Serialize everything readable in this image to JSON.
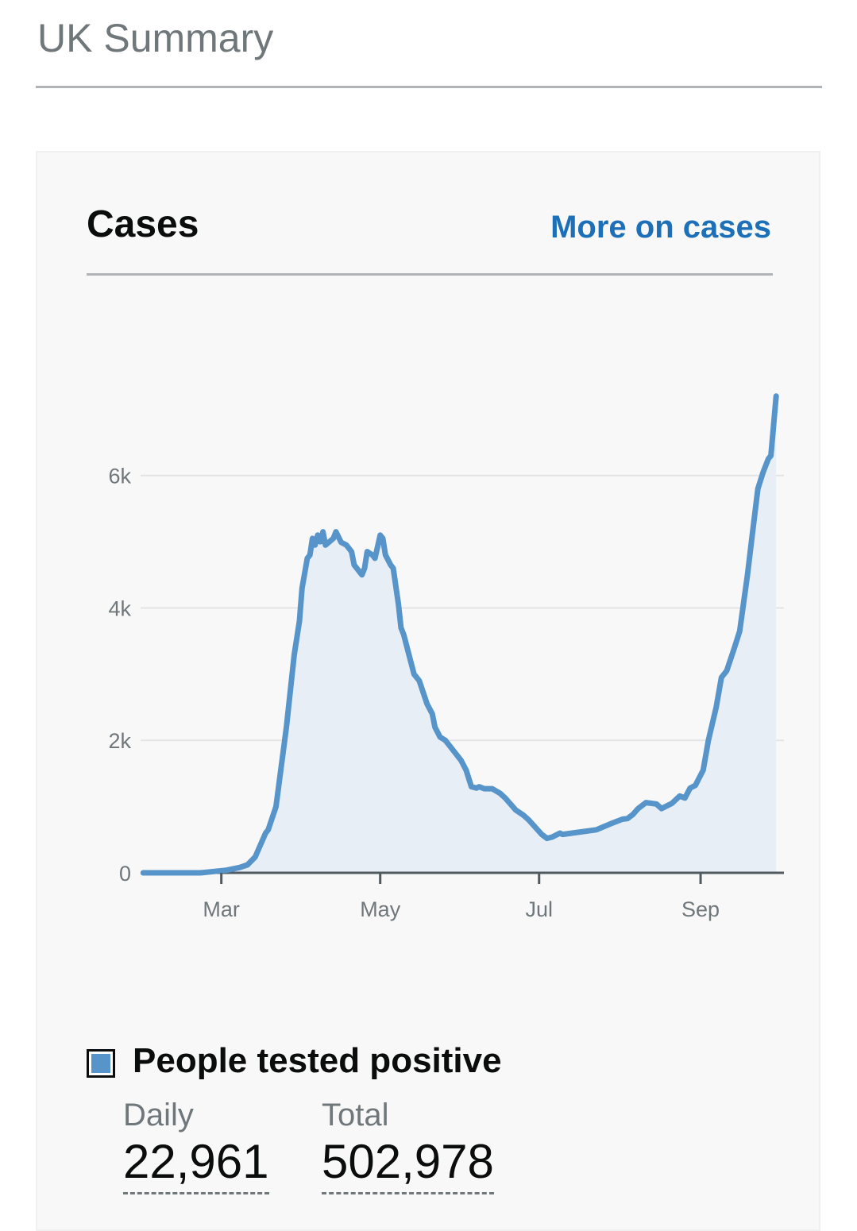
{
  "page": {
    "title": "UK Summary"
  },
  "card": {
    "title": "Cases",
    "link_label": "More on cases",
    "legend_label": "People tested positive",
    "daily_label": "Daily",
    "daily_value": "22,961",
    "total_label": "Total",
    "total_value": "502,978"
  },
  "colors": {
    "line": "#5694ca",
    "area": "#e8eef6",
    "link": "#1d70b8",
    "card_bg": "#f8f8f8"
  },
  "chart_data": {
    "type": "area",
    "title": "",
    "xlabel": "",
    "ylabel": "",
    "grid": true,
    "legend": "bottom",
    "x_ticks": [
      {
        "date": "2020-03-01",
        "label": "Mar"
      },
      {
        "date": "2020-05-01",
        "label": "May"
      },
      {
        "date": "2020-07-01",
        "label": "Jul"
      },
      {
        "date": "2020-09-01",
        "label": "Sep"
      }
    ],
    "y_ticks": [
      {
        "value": 0,
        "label": "0"
      },
      {
        "value": 2000,
        "label": "2k"
      },
      {
        "value": 4000,
        "label": "4k"
      },
      {
        "value": 6000,
        "label": "6k"
      }
    ],
    "xlim": [
      "2020-01-30",
      "2020-10-03"
    ],
    "ylim": [
      0,
      7400
    ],
    "series": [
      {
        "name": "People tested positive",
        "points": [
          [
            "2020-01-31",
            0
          ],
          [
            "2020-02-15",
            0
          ],
          [
            "2020-02-22",
            0
          ],
          [
            "2020-03-03",
            40
          ],
          [
            "2020-03-08",
            80
          ],
          [
            "2020-03-11",
            120
          ],
          [
            "2020-03-14",
            240
          ],
          [
            "2020-03-18",
            600
          ],
          [
            "2020-03-19",
            650
          ],
          [
            "2020-03-22",
            1000
          ],
          [
            "2020-03-26",
            2200
          ],
          [
            "2020-03-29",
            3300
          ],
          [
            "2020-03-31",
            3800
          ],
          [
            "2020-04-01",
            4300
          ],
          [
            "2020-04-03",
            4750
          ],
          [
            "2020-04-04",
            4800
          ],
          [
            "2020-04-05",
            5050
          ],
          [
            "2020-04-06",
            4950
          ],
          [
            "2020-04-07",
            5100
          ],
          [
            "2020-04-08",
            5000
          ],
          [
            "2020-04-09",
            5150
          ],
          [
            "2020-04-10",
            4950
          ],
          [
            "2020-04-13",
            5050
          ],
          [
            "2020-04-14",
            5150
          ],
          [
            "2020-04-16",
            4990
          ],
          [
            "2020-04-18",
            4950
          ],
          [
            "2020-04-20",
            4850
          ],
          [
            "2020-04-21",
            4650
          ],
          [
            "2020-04-24",
            4500
          ],
          [
            "2020-04-25",
            4600
          ],
          [
            "2020-04-26",
            4850
          ],
          [
            "2020-04-28",
            4800
          ],
          [
            "2020-04-29",
            4750
          ],
          [
            "2020-05-01",
            5100
          ],
          [
            "2020-05-02",
            5050
          ],
          [
            "2020-05-03",
            4800
          ],
          [
            "2020-05-05",
            4650
          ],
          [
            "2020-05-06",
            4600
          ],
          [
            "2020-05-08",
            4050
          ],
          [
            "2020-05-09",
            3700
          ],
          [
            "2020-05-10",
            3600
          ],
          [
            "2020-05-14",
            3000
          ],
          [
            "2020-05-16",
            2900
          ],
          [
            "2020-05-19",
            2550
          ],
          [
            "2020-05-21",
            2400
          ],
          [
            "2020-05-22",
            2200
          ],
          [
            "2020-05-24",
            2050
          ],
          [
            "2020-05-26",
            2000
          ],
          [
            "2020-05-27",
            1950
          ],
          [
            "2020-05-30",
            1800
          ],
          [
            "2020-06-01",
            1700
          ],
          [
            "2020-06-03",
            1550
          ],
          [
            "2020-06-05",
            1300
          ],
          [
            "2020-06-07",
            1280
          ],
          [
            "2020-06-08",
            1300
          ],
          [
            "2020-06-10",
            1270
          ],
          [
            "2020-06-13",
            1270
          ],
          [
            "2020-06-16",
            1200
          ],
          [
            "2020-06-18",
            1130
          ],
          [
            "2020-06-22",
            950
          ],
          [
            "2020-06-25",
            870
          ],
          [
            "2020-06-27",
            800
          ],
          [
            "2020-07-02",
            580
          ],
          [
            "2020-07-04",
            520
          ],
          [
            "2020-07-06",
            540
          ],
          [
            "2020-07-09",
            600
          ],
          [
            "2020-07-10",
            580
          ],
          [
            "2020-07-23",
            650
          ],
          [
            "2020-07-29",
            750
          ],
          [
            "2020-08-02",
            810
          ],
          [
            "2020-08-04",
            820
          ],
          [
            "2020-08-06",
            880
          ],
          [
            "2020-08-08",
            970
          ],
          [
            "2020-08-11",
            1060
          ],
          [
            "2020-08-15",
            1040
          ],
          [
            "2020-08-17",
            970
          ],
          [
            "2020-08-21",
            1050
          ],
          [
            "2020-08-24",
            1160
          ],
          [
            "2020-08-26",
            1130
          ],
          [
            "2020-08-28",
            1280
          ],
          [
            "2020-08-30",
            1320
          ],
          [
            "2020-09-02",
            1550
          ],
          [
            "2020-09-04",
            2000
          ],
          [
            "2020-09-07",
            2500
          ],
          [
            "2020-09-09",
            2950
          ],
          [
            "2020-09-11",
            3050
          ],
          [
            "2020-09-14",
            3400
          ],
          [
            "2020-09-16",
            3650
          ],
          [
            "2020-09-19",
            4500
          ],
          [
            "2020-09-21",
            5150
          ],
          [
            "2020-09-23",
            5800
          ],
          [
            "2020-09-25",
            6050
          ],
          [
            "2020-09-27",
            6250
          ],
          [
            "2020-09-28",
            6300
          ],
          [
            "2020-09-30",
            7200
          ]
        ]
      }
    ]
  }
}
